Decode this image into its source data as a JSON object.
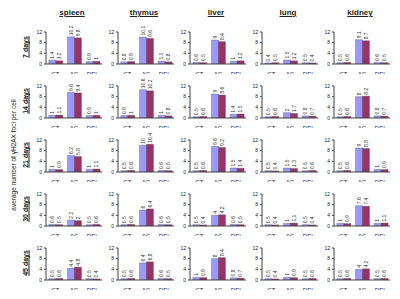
{
  "y_label": "average number of γH2AX foci per cell",
  "columns": [
    "spleen",
    "thymus",
    "liver",
    "lung",
    "kidney"
  ],
  "rows": [
    "7 days",
    "14 days",
    "21 days",
    "30 days",
    "45 days"
  ],
  "chart_data": [
    {
      "type": "bar",
      "categories": [
        "CT",
        "AC",
        "DEL"
      ],
      "series": [
        {
          "color": "#9999ff",
          "values": [
            1.4,
            10.2,
            0.9
          ]
        },
        {
          "color": "#993366",
          "values": [
            1.2,
            9.8,
            1.0
          ]
        }
      ],
      "ylim": [
        0,
        12
      ],
      "yticks": [
        0,
        4,
        8,
        12
      ],
      "grid": false,
      "data_labels": true
    },
    {
      "type": "bar",
      "categories": [
        "CT",
        "AC",
        "DEL"
      ],
      "series": [
        {
          "color": "#9999ff",
          "values": [
            0.8,
            10.1,
            1.1
          ]
        },
        {
          "color": "#993366",
          "values": [
            0.9,
            9.6,
            0.8
          ]
        }
      ],
      "ylim": [
        0,
        12
      ],
      "yticks": [
        0,
        4,
        8,
        12
      ],
      "grid": false,
      "data_labels": true
    },
    {
      "type": "bar",
      "categories": [
        "CT",
        "AC",
        "DEL"
      ],
      "series": [
        {
          "color": "#9999ff",
          "values": [
            0.6,
            9.0,
            1.0
          ]
        },
        {
          "color": "#993366",
          "values": [
            0.5,
            8.4,
            1.2
          ]
        }
      ],
      "ylim": [
        0,
        12
      ],
      "yticks": [
        0,
        4,
        8,
        12
      ],
      "grid": false,
      "data_labels": true
    },
    {
      "type": "bar",
      "categories": [
        "CT",
        "AC",
        "DEL"
      ],
      "series": [
        {
          "color": "#9999ff",
          "values": [
            0.4,
            1.5,
            0.5
          ]
        },
        {
          "color": "#993366",
          "values": [
            0.5,
            1.2,
            0.4
          ]
        }
      ],
      "ylim": [
        0,
        12
      ],
      "yticks": [
        0,
        4,
        8,
        12
      ],
      "grid": false,
      "data_labels": true
    },
    {
      "type": "bar",
      "categories": [
        "CT",
        "AC",
        "DEL"
      ],
      "series": [
        {
          "color": "#9999ff",
          "values": [
            0.5,
            9.1,
            0.6
          ]
        },
        {
          "color": "#993366",
          "values": [
            0.6,
            8.7,
            0.5
          ]
        }
      ],
      "ylim": [
        0,
        12
      ],
      "yticks": [
        0,
        4,
        8,
        12
      ],
      "grid": false,
      "data_labels": true
    },
    {
      "type": "bar",
      "categories": [
        "CT",
        "AC",
        "DEL"
      ],
      "series": [
        {
          "color": "#9999ff",
          "values": [
            1.0,
            9.6,
            0.9
          ]
        },
        {
          "color": "#993366",
          "values": [
            1.1,
            9.4,
            1.0
          ]
        }
      ],
      "ylim": [
        0,
        12
      ],
      "yticks": [
        0,
        4,
        8,
        12
      ],
      "grid": false,
      "data_labels": true
    },
    {
      "type": "bar",
      "categories": [
        "CT",
        "AC",
        "DEL"
      ],
      "series": [
        {
          "color": "#9999ff",
          "values": [
            0.9,
            10.6,
            1.0
          ]
        },
        {
          "color": "#993366",
          "values": [
            1.0,
            10.2,
            0.8
          ]
        }
      ],
      "ylim": [
        0,
        12
      ],
      "yticks": [
        0,
        4,
        8,
        12
      ],
      "grid": false,
      "data_labels": true
    },
    {
      "type": "bar",
      "categories": [
        "CT",
        "AC",
        "DEL"
      ],
      "series": [
        {
          "color": "#9999ff",
          "values": [
            0.5,
            9.0,
            1.4
          ]
        },
        {
          "color": "#993366",
          "values": [
            0.6,
            8.6,
            1.5
          ]
        }
      ],
      "ylim": [
        0,
        12
      ],
      "yticks": [
        0,
        4,
        8,
        12
      ],
      "grid": false,
      "data_labels": true
    },
    {
      "type": "bar",
      "categories": [
        "CT",
        "AC",
        "DEL"
      ],
      "series": [
        {
          "color": "#9999ff",
          "values": [
            0.5,
            2.0,
            0.8
          ]
        },
        {
          "color": "#993366",
          "values": [
            0.6,
            1.7,
            0.7
          ]
        }
      ],
      "ylim": [
        0,
        12
      ],
      "yticks": [
        0,
        4,
        8,
        12
      ],
      "grid": false,
      "data_labels": true
    },
    {
      "type": "bar",
      "categories": [
        "CT",
        "AC",
        "DEL"
      ],
      "series": [
        {
          "color": "#9999ff",
          "values": [
            0.5,
            8.0,
            0.8
          ]
        },
        {
          "color": "#993366",
          "values": [
            0.6,
            8.2,
            0.7
          ]
        }
      ],
      "ylim": [
        0,
        12
      ],
      "yticks": [
        0,
        4,
        8,
        12
      ],
      "grid": false,
      "data_labels": true
    },
    {
      "type": "bar",
      "categories": [
        "CT",
        "AC",
        "DEL"
      ],
      "series": [
        {
          "color": "#9999ff",
          "values": [
            1.0,
            6.2,
            1.0
          ]
        },
        {
          "color": "#993366",
          "values": [
            0.9,
            5.8,
            1.1
          ]
        }
      ],
      "ylim": [
        0,
        12
      ],
      "yticks": [
        0,
        4,
        8,
        12
      ],
      "grid": false,
      "data_labels": true
    },
    {
      "type": "bar",
      "categories": [
        "CT",
        "AC",
        "DEL"
      ],
      "series": [
        {
          "color": "#9999ff",
          "values": [
            0.5,
            10.0,
            0.6
          ]
        },
        {
          "color": "#993366",
          "values": [
            0.6,
            10.4,
            0.5
          ]
        }
      ],
      "ylim": [
        0,
        12
      ],
      "yticks": [
        0,
        4,
        8,
        12
      ],
      "grid": false,
      "data_labels": true
    },
    {
      "type": "bar",
      "categories": [
        "CT",
        "AC",
        "DEL"
      ],
      "series": [
        {
          "color": "#9999ff",
          "values": [
            0.5,
            9.6,
            1.5
          ]
        },
        {
          "color": "#993366",
          "values": [
            0.6,
            9.2,
            1.4
          ]
        }
      ],
      "ylim": [
        0,
        12
      ],
      "yticks": [
        0,
        4,
        8,
        12
      ],
      "grid": false,
      "data_labels": true
    },
    {
      "type": "bar",
      "categories": [
        "CT",
        "AC",
        "DEL"
      ],
      "series": [
        {
          "color": "#9999ff",
          "values": [
            0.5,
            1.5,
            0.5
          ]
        },
        {
          "color": "#993366",
          "values": [
            0.4,
            1.3,
            0.6
          ]
        }
      ],
      "ylim": [
        0,
        12
      ],
      "yticks": [
        0,
        4,
        8,
        12
      ],
      "grid": false,
      "data_labels": true
    },
    {
      "type": "bar",
      "categories": [
        "CT",
        "AC",
        "DEL"
      ],
      "series": [
        {
          "color": "#9999ff",
          "values": [
            0.5,
            9.0,
            1.0
          ]
        },
        {
          "color": "#993366",
          "values": [
            0.6,
            8.8,
            0.9
          ]
        }
      ],
      "ylim": [
        0,
        12
      ],
      "yticks": [
        0,
        4,
        8,
        12
      ],
      "grid": false,
      "data_labels": true
    },
    {
      "type": "bar",
      "categories": [
        "CT",
        "AC",
        "DEL"
      ],
      "series": [
        {
          "color": "#9999ff",
          "values": [
            0.6,
            2.2,
            0.5
          ]
        },
        {
          "color": "#993366",
          "values": [
            0.5,
            2.0,
            0.6
          ]
        }
      ],
      "ylim": [
        0,
        12
      ],
      "yticks": [
        0,
        4,
        8,
        12
      ],
      "grid": false,
      "data_labels": true
    },
    {
      "type": "bar",
      "categories": [
        "CT",
        "AC",
        "DEL"
      ],
      "series": [
        {
          "color": "#9999ff",
          "values": [
            0.5,
            6.0,
            0.6
          ]
        },
        {
          "color": "#993366",
          "values": [
            0.6,
            6.4,
            0.5
          ]
        }
      ],
      "ylim": [
        0,
        12
      ],
      "yticks": [
        0,
        4,
        8,
        12
      ],
      "grid": false,
      "data_labels": true
    },
    {
      "type": "bar",
      "categories": [
        "CT",
        "AC",
        "DEL"
      ],
      "series": [
        {
          "color": "#9999ff",
          "values": [
            0.5,
            4.0,
            0.6
          ]
        },
        {
          "color": "#993366",
          "values": [
            0.4,
            4.2,
            0.5
          ]
        }
      ],
      "ylim": [
        0,
        12
      ],
      "yticks": [
        0,
        4,
        8,
        12
      ],
      "grid": false,
      "data_labels": true
    },
    {
      "type": "bar",
      "categories": [
        "CT",
        "AC",
        "DEL"
      ],
      "series": [
        {
          "color": "#9999ff",
          "values": [
            0.5,
            1.0,
            0.5
          ]
        },
        {
          "color": "#993366",
          "values": [
            0.4,
            1.1,
            0.4
          ]
        }
      ],
      "ylim": [
        0,
        12
      ],
      "yticks": [
        0,
        4,
        8,
        12
      ],
      "grid": false,
      "data_labels": true
    },
    {
      "type": "bar",
      "categories": [
        "CT",
        "AC",
        "DEL"
      ],
      "series": [
        {
          "color": "#9999ff",
          "values": [
            1.0,
            7.6,
            1.0
          ]
        },
        {
          "color": "#993366",
          "values": [
            0.9,
            7.4,
            1.1
          ]
        }
      ],
      "ylim": [
        0,
        12
      ],
      "yticks": [
        0,
        4,
        8,
        12
      ],
      "grid": false,
      "data_labels": true
    },
    {
      "type": "bar",
      "categories": [
        "CT",
        "AC",
        "DEL"
      ],
      "series": [
        {
          "color": "#9999ff",
          "values": [
            0.5,
            4.4,
            0.5
          ]
        },
        {
          "color": "#993366",
          "values": [
            0.6,
            4.8,
            0.4
          ]
        }
      ],
      "ylim": [
        0,
        12
      ],
      "yticks": [
        0,
        4,
        8,
        12
      ],
      "grid": false,
      "data_labels": true
    },
    {
      "type": "bar",
      "categories": [
        "CT",
        "AC",
        "DEL"
      ],
      "series": [
        {
          "color": "#9999ff",
          "values": [
            0.5,
            6.4,
            0.6
          ]
        },
        {
          "color": "#993366",
          "values": [
            0.6,
            6.8,
            0.5
          ]
        }
      ],
      "ylim": [
        0,
        12
      ],
      "yticks": [
        0,
        4,
        8,
        12
      ],
      "grid": false,
      "data_labels": true
    },
    {
      "type": "bar",
      "categories": [
        "CT",
        "AC",
        "DEL"
      ],
      "series": [
        {
          "color": "#9999ff",
          "values": [
            1.0,
            8.0,
            0.8
          ]
        },
        {
          "color": "#993366",
          "values": [
            0.9,
            8.4,
            0.7
          ]
        }
      ],
      "ylim": [
        0,
        12
      ],
      "yticks": [
        0,
        4,
        8,
        12
      ],
      "grid": false,
      "data_labels": true
    },
    {
      "type": "bar",
      "categories": [
        "CT",
        "AC",
        "DEL"
      ],
      "series": [
        {
          "color": "#9999ff",
          "values": [
            0.5,
            1.0,
            0.5
          ]
        },
        {
          "color": "#993366",
          "values": [
            0.4,
            0.9,
            0.6
          ]
        }
      ],
      "ylim": [
        0,
        12
      ],
      "yticks": [
        0,
        4,
        8,
        12
      ],
      "grid": false,
      "data_labels": true
    },
    {
      "type": "bar",
      "categories": [
        "CT",
        "AC",
        "DEL"
      ],
      "series": [
        {
          "color": "#9999ff",
          "values": [
            0.5,
            4.0,
            0.5
          ]
        },
        {
          "color": "#993366",
          "values": [
            0.6,
            4.2,
            0.6
          ]
        }
      ],
      "ylim": [
        0,
        12
      ],
      "yticks": [
        0,
        4,
        8,
        12
      ],
      "grid": false,
      "data_labels": true
    }
  ]
}
